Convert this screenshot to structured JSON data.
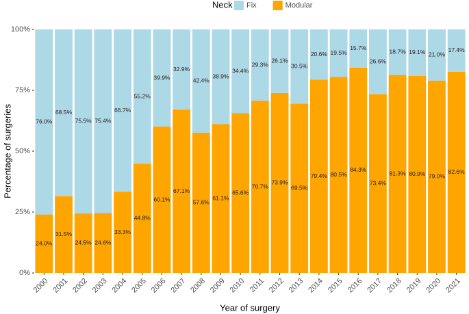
{
  "chart_data": {
    "type": "stacked-bar",
    "legend_title": "Neck",
    "x_label": "Year of surgery",
    "y_label": "Percentage of surgeries",
    "categories": [
      "2000",
      "2001",
      "2002",
      "2003",
      "2004",
      "2005",
      "2006",
      "2007",
      "2008",
      "2009",
      "2010",
      "2011",
      "2012",
      "2013",
      "2014",
      "2015",
      "2016",
      "2017",
      "2018",
      "2019",
      "2020",
      "2021"
    ],
    "series": [
      {
        "name": "Fix",
        "color": "#add8e6",
        "values": [
          76.0,
          68.5,
          75.5,
          75.4,
          66.7,
          55.2,
          39.9,
          32.9,
          42.4,
          38.9,
          34.4,
          29.3,
          26.1,
          30.5,
          20.6,
          19.5,
          15.7,
          26.6,
          18.7,
          19.1,
          21.0,
          17.4
        ],
        "value_labels": [
          "76.0%",
          "68.5%",
          "75.5%",
          "75.4%",
          "66.7%",
          "55.2%",
          "39.9%",
          "32.9%",
          "42.4%",
          "38.9%",
          "34.4%",
          "29.3%",
          "26.1%",
          "30.5%",
          "20.6%",
          "19.5%",
          "15.7%",
          "26.6%",
          "18.7%",
          "19.1%",
          "21.0%",
          "17.4%"
        ]
      },
      {
        "name": "Modular",
        "color": "#ffa500",
        "values": [
          24.0,
          31.5,
          24.5,
          24.6,
          33.3,
          44.8,
          60.1,
          67.1,
          57.6,
          61.1,
          65.6,
          70.7,
          73.9,
          69.5,
          79.4,
          80.5,
          84.3,
          73.4,
          81.3,
          80.9,
          79.0,
          82.6
        ],
        "value_labels": [
          "24.0%",
          "31.5%",
          "24.5%",
          "24.6%",
          "33.3%",
          "44.8%",
          "60.1%",
          "67.1%",
          "57.6%",
          "61.1%",
          "65.6%",
          "70.7%",
          "73.9%",
          "69.5%",
          "79.4%",
          "80.5%",
          "84.3%",
          "73.4%",
          "81.3%",
          "80.9%",
          "79.0%",
          "82.6%"
        ]
      }
    ],
    "ylim": [
      0,
      100
    ],
    "yticks": [
      {
        "value": 0,
        "label": "0%"
      },
      {
        "value": 25,
        "label": "25%"
      },
      {
        "value": 50,
        "label": "50%"
      },
      {
        "value": 75,
        "label": "75%"
      },
      {
        "value": 100,
        "label": "100%"
      }
    ],
    "legend_position": "top"
  }
}
